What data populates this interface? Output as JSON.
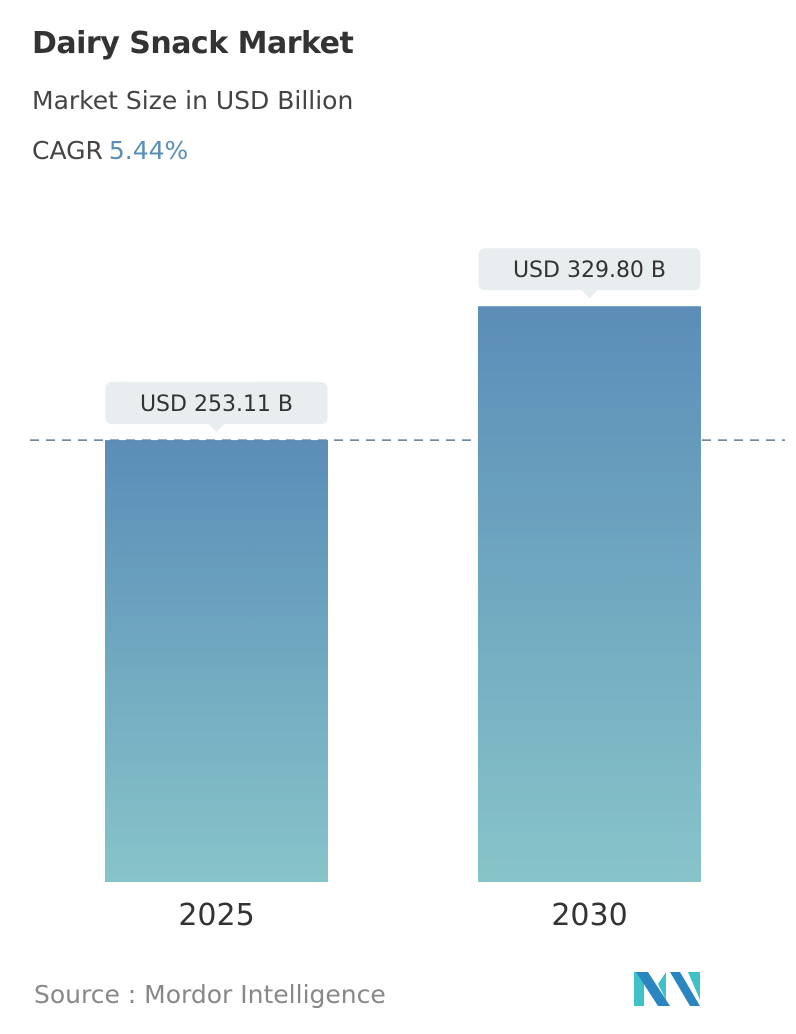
{
  "header": {
    "title": "Dairy Snack Market",
    "subtitle": "Market Size in USD Billion",
    "cagr_label": "CAGR",
    "cagr_value": "5.44%"
  },
  "chart_data": {
    "type": "bar",
    "title": "Dairy Snack Market",
    "ylabel": "Market Size in USD Billion",
    "categories": [
      "2025",
      "2030"
    ],
    "values": [
      253.11,
      329.8
    ],
    "data_labels": [
      "USD 253.11 B",
      "USD 329.80 B"
    ],
    "ylim": [
      0,
      362
    ],
    "grid": false,
    "reference_line": 253.11,
    "colors": {
      "bar_top": "#5b8db8",
      "bar_bottom": "#87c4c9",
      "label_bg": "#e8eeef",
      "dash": "#5a7a98"
    }
  },
  "footer": {
    "source": "Source :  Mordor Intelligence",
    "logo_text": "Mordor Intelligence"
  }
}
